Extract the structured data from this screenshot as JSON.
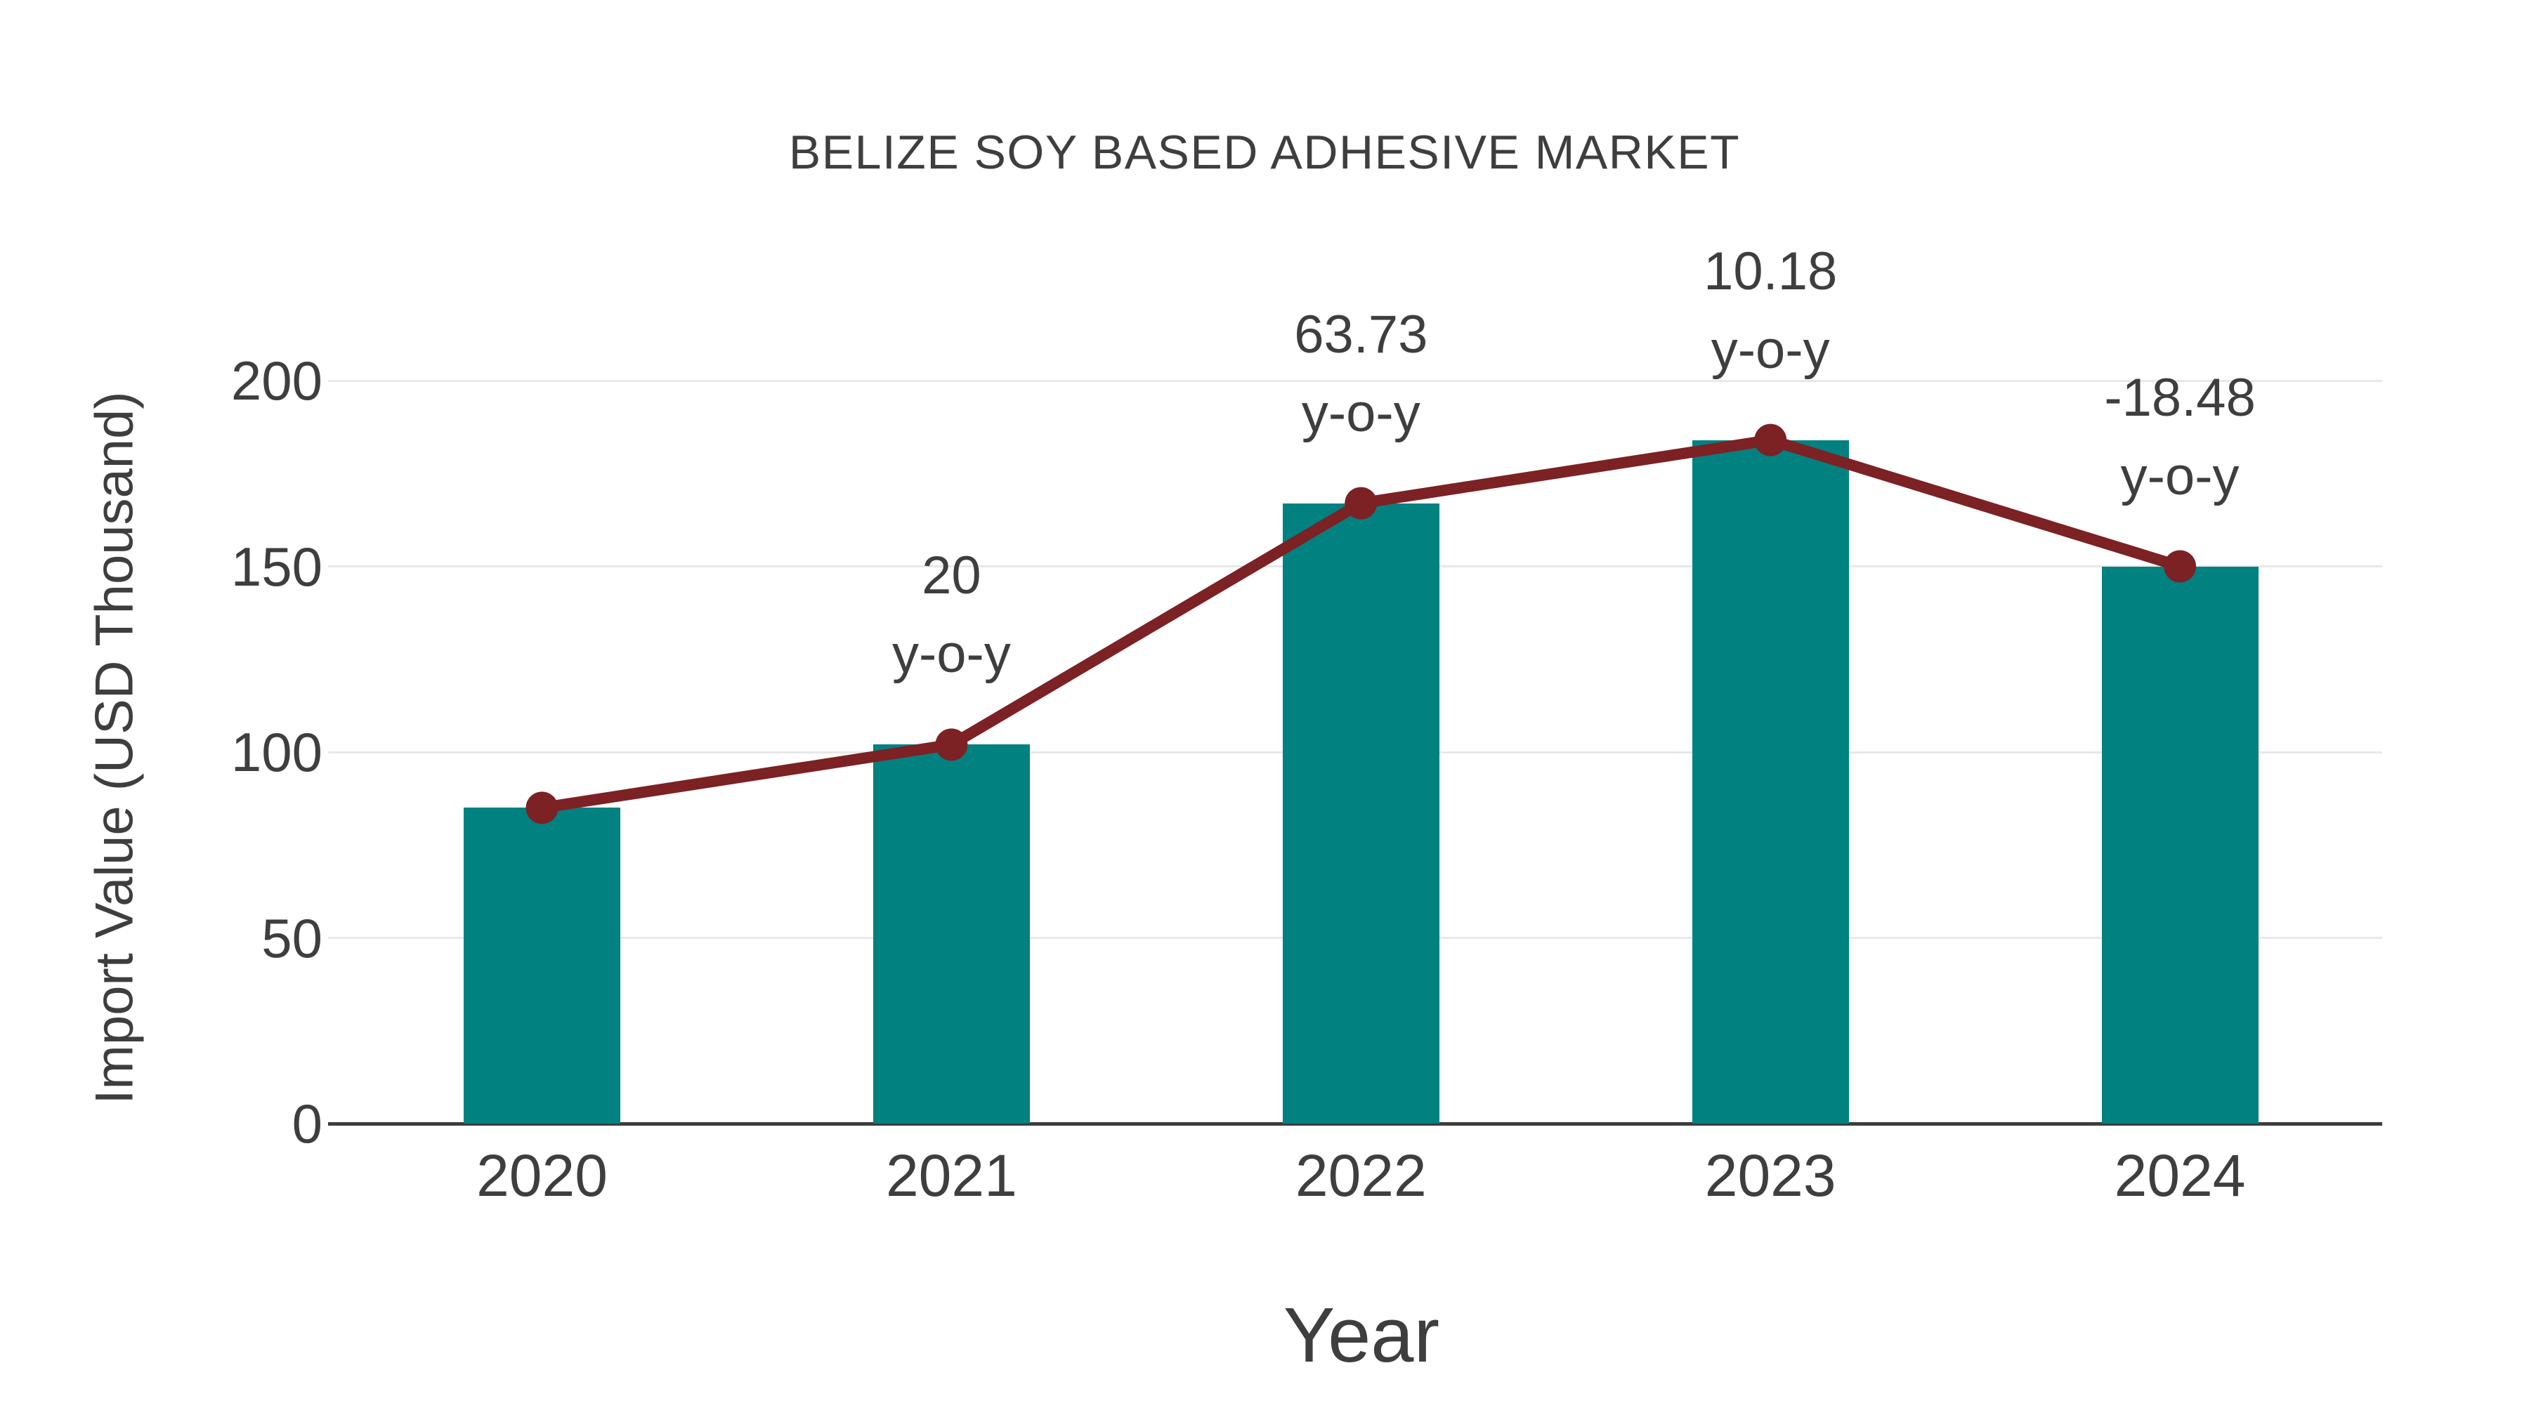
{
  "title": "BELIZE SOY BASED ADHESIVE MARKET",
  "chart_data": {
    "type": "bar",
    "subtype": "bar-with-line-overlay",
    "title": "BELIZE SOY BASED ADHESIVE MARKET",
    "xlabel": "Year",
    "ylabel": "Import Value (USD Thousand)",
    "categories": [
      "2020",
      "2021",
      "2022",
      "2023",
      "2024"
    ],
    "yticks": [
      0,
      50,
      100,
      150,
      200
    ],
    "ylim": [
      0,
      200
    ],
    "grid": "horizontal",
    "legend": "none",
    "series": [
      {
        "name": "Import Value (USD Thousand)",
        "type": "bar",
        "color": "#028181",
        "values": [
          85,
          102,
          167,
          184,
          150
        ]
      },
      {
        "name": "y-o-y growth",
        "type": "line",
        "color": "#7c2124",
        "plotted_values": [
          85,
          102,
          167,
          184,
          150
        ],
        "yoy_percent": [
          null,
          20,
          63.73,
          10.18,
          -18.48
        ]
      }
    ],
    "annotations": [
      {
        "category": "2021",
        "line1": "20",
        "line2": "y-o-y"
      },
      {
        "category": "2022",
        "line1": "63.73",
        "line2": "y-o-y"
      },
      {
        "category": "2023",
        "line1": "10.18",
        "line2": "y-o-y"
      },
      {
        "category": "2024",
        "line1": "-18.48",
        "line2": "y-o-y"
      }
    ],
    "colors": {
      "bar": "#028181",
      "line": "#7c2124",
      "grid": "#e8e8e8",
      "axis": "#3c3c3c",
      "text": "#3e3e3e"
    }
  }
}
